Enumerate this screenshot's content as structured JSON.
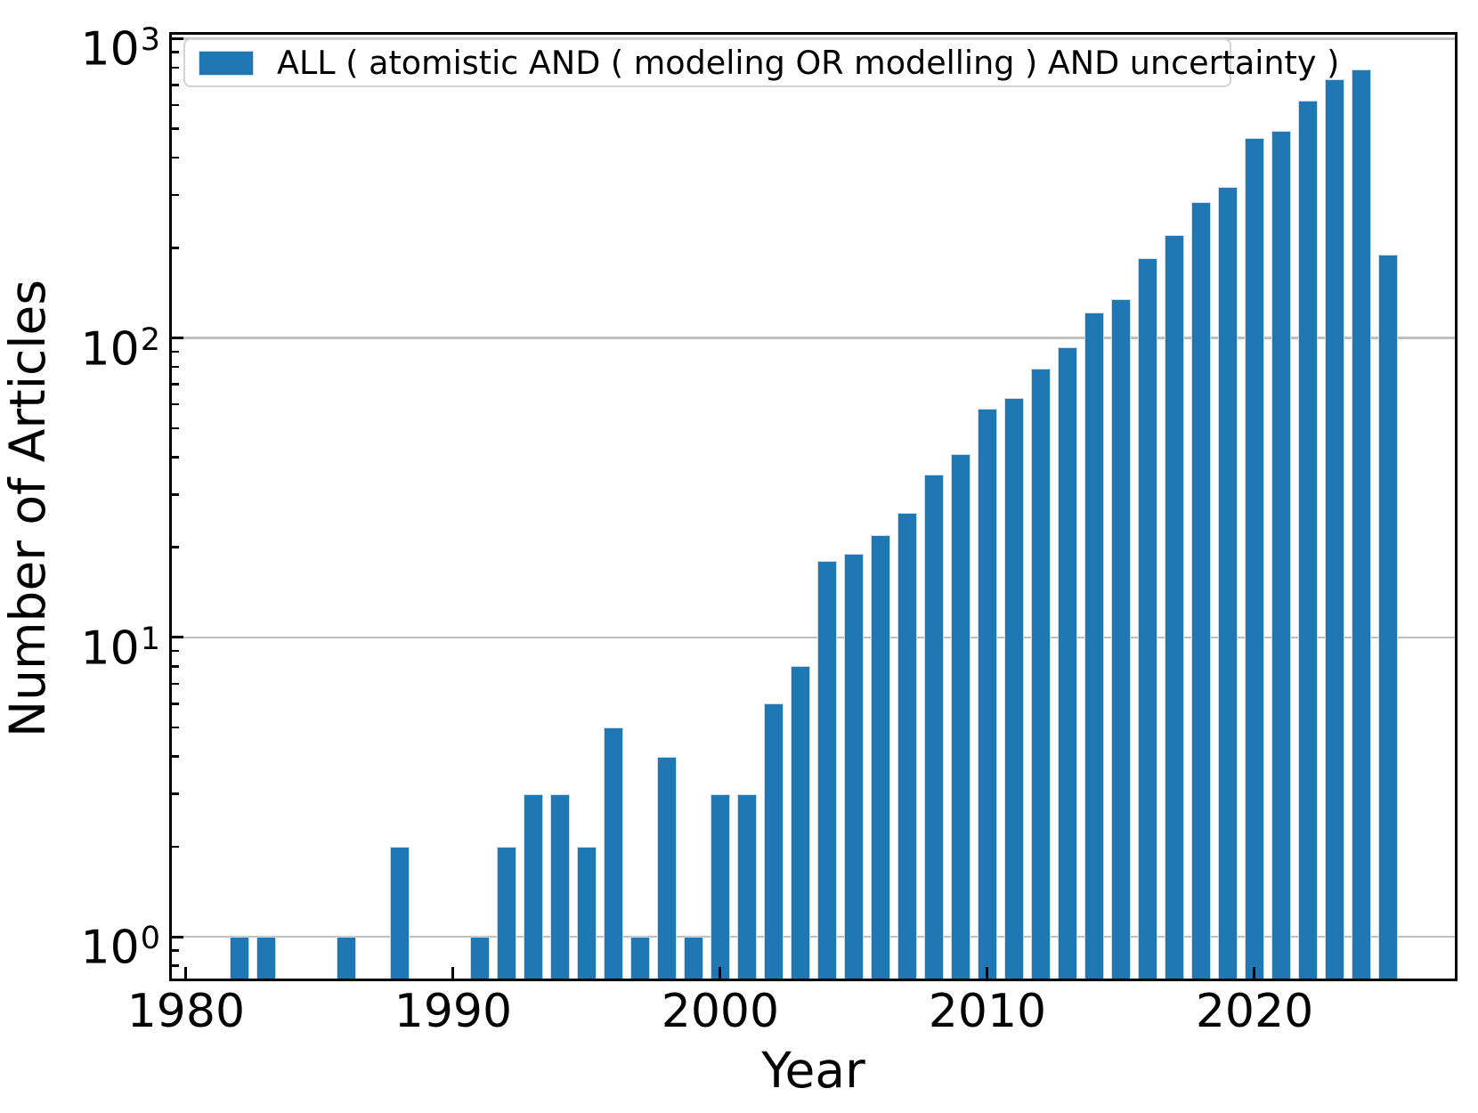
{
  "chart_data": {
    "type": "bar",
    "title": "",
    "xlabel": "Year",
    "ylabel": "Number of Articles",
    "yscale": "log",
    "xlim": [
      1979.47,
      2027.5
    ],
    "ylim": [
      0.725,
      1030
    ],
    "xticks": [
      1980,
      1990,
      2000,
      2010,
      2020
    ],
    "yticks": [
      {
        "base": "10",
        "exp": "0",
        "value": 1
      },
      {
        "base": "10",
        "exp": "1",
        "value": 10
      },
      {
        "base": "10",
        "exp": "2",
        "value": 100
      },
      {
        "base": "10",
        "exp": "3",
        "value": 1000
      }
    ],
    "grid": "horizontal-major-gridlines",
    "legend_position": "upper-left",
    "legend": {
      "label": "ALL ( atomistic AND ( modeling OR modelling ) AND uncertainty )"
    },
    "bar_width_years": 0.75,
    "colors": {
      "bar_fill": "#1f77b4",
      "bar_edge": "#cadcec",
      "gridline": "#bfbfbf",
      "spine": "#000000",
      "text": "#000000",
      "legend_border": "#d2d2d2"
    },
    "points": [
      {
        "year": 1982,
        "value": 1
      },
      {
        "year": 1983,
        "value": 1
      },
      {
        "year": 1986,
        "value": 1
      },
      {
        "year": 1988,
        "value": 2
      },
      {
        "year": 1991,
        "value": 1
      },
      {
        "year": 1992,
        "value": 2
      },
      {
        "year": 1993,
        "value": 3
      },
      {
        "year": 1994,
        "value": 3
      },
      {
        "year": 1995,
        "value": 2
      },
      {
        "year": 1996,
        "value": 5
      },
      {
        "year": 1997,
        "value": 1
      },
      {
        "year": 1998,
        "value": 4
      },
      {
        "year": 1999,
        "value": 1
      },
      {
        "year": 2000,
        "value": 3
      },
      {
        "year": 2001,
        "value": 3
      },
      {
        "year": 2002,
        "value": 6
      },
      {
        "year": 2003,
        "value": 8
      },
      {
        "year": 2004,
        "value": 18
      },
      {
        "year": 2005,
        "value": 19
      },
      {
        "year": 2006,
        "value": 22
      },
      {
        "year": 2007,
        "value": 26
      },
      {
        "year": 2008,
        "value": 35
      },
      {
        "year": 2009,
        "value": 41
      },
      {
        "year": 2010,
        "value": 58
      },
      {
        "year": 2011,
        "value": 63
      },
      {
        "year": 2012,
        "value": 79
      },
      {
        "year": 2013,
        "value": 93
      },
      {
        "year": 2014,
        "value": 122
      },
      {
        "year": 2015,
        "value": 135
      },
      {
        "year": 2016,
        "value": 185
      },
      {
        "year": 2017,
        "value": 220
      },
      {
        "year": 2018,
        "value": 285
      },
      {
        "year": 2019,
        "value": 320
      },
      {
        "year": 2020,
        "value": 465
      },
      {
        "year": 2021,
        "value": 490
      },
      {
        "year": 2022,
        "value": 620
      },
      {
        "year": 2023,
        "value": 730
      },
      {
        "year": 2024,
        "value": 790
      },
      {
        "year": 2025,
        "value": 190
      }
    ]
  }
}
